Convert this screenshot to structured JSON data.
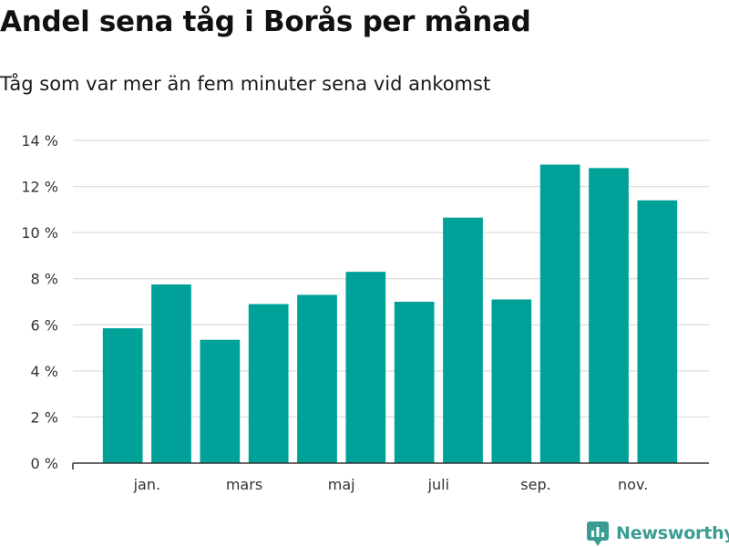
{
  "chart_data": {
    "type": "bar",
    "title": "Andel sena tåg i Borås per månad",
    "subtitle": "Tåg som var mer än fem minuter sena vid ankomst",
    "xlabel": "",
    "ylabel": "",
    "ylim": [
      0,
      14
    ],
    "y_ticks": [
      {
        "value": 0,
        "label": "0 %"
      },
      {
        "value": 2,
        "label": "2 %"
      },
      {
        "value": 4,
        "label": "4 %"
      },
      {
        "value": 6,
        "label": "6 %"
      },
      {
        "value": 8,
        "label": "8 %"
      },
      {
        "value": 10,
        "label": "10 %"
      },
      {
        "value": 12,
        "label": "12 %"
      },
      {
        "value": 14,
        "label": "14 %"
      }
    ],
    "x_ticks": [
      {
        "after_bar": 1,
        "label": "jan."
      },
      {
        "after_bar": 3,
        "label": "mars"
      },
      {
        "after_bar": 5,
        "label": "maj"
      },
      {
        "after_bar": 7,
        "label": "juli"
      },
      {
        "after_bar": 9,
        "label": "sep."
      },
      {
        "after_bar": 11,
        "label": "nov."
      }
    ],
    "values": [
      5.85,
      7.75,
      5.35,
      6.9,
      7.3,
      8.3,
      7.0,
      10.65,
      7.1,
      12.95,
      12.8,
      11.4
    ],
    "bar_color": "#00a199",
    "grid": true
  },
  "branding": {
    "name": "Newsworthy",
    "icon": "newsworthy-logo-icon",
    "color": "#3a9c92"
  }
}
